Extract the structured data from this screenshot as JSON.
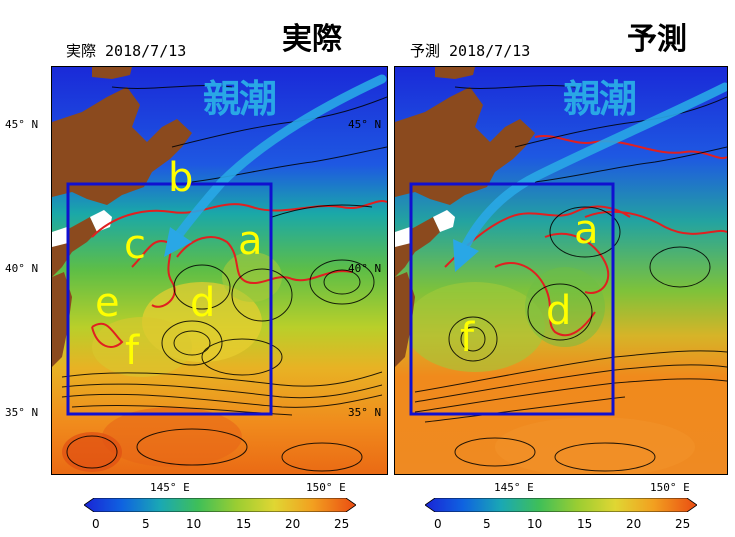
{
  "left_panel": {
    "header": "実際 2018/7/13",
    "big_title": "実際",
    "current_label": "親潮",
    "region_labels": [
      "a",
      "b",
      "c",
      "d",
      "e",
      "f"
    ]
  },
  "right_panel": {
    "header": "予測 2018/7/13",
    "big_title": "予測",
    "current_label": "親潮",
    "region_labels": [
      "a",
      "d",
      "f"
    ]
  },
  "axes": {
    "lat_ticks": [
      "45° N",
      "40° N",
      "35° N"
    ],
    "lon_ticks": [
      "145° E",
      "150° E"
    ]
  },
  "colorbar": {
    "ticks": [
      "0",
      "5",
      "10",
      "15",
      "20",
      "25"
    ],
    "colors": [
      "#1a24d6",
      "#0f63e0",
      "#1aa8b4",
      "#3fbf58",
      "#9acd32",
      "#e0d633",
      "#f2a020",
      "#ea4b12"
    ]
  },
  "colors": {
    "land": "#8b4a1e",
    "box": "#1010d0",
    "contour": "#e02020",
    "current_arrow": "#29a7e6",
    "label": "#ffff00"
  }
}
